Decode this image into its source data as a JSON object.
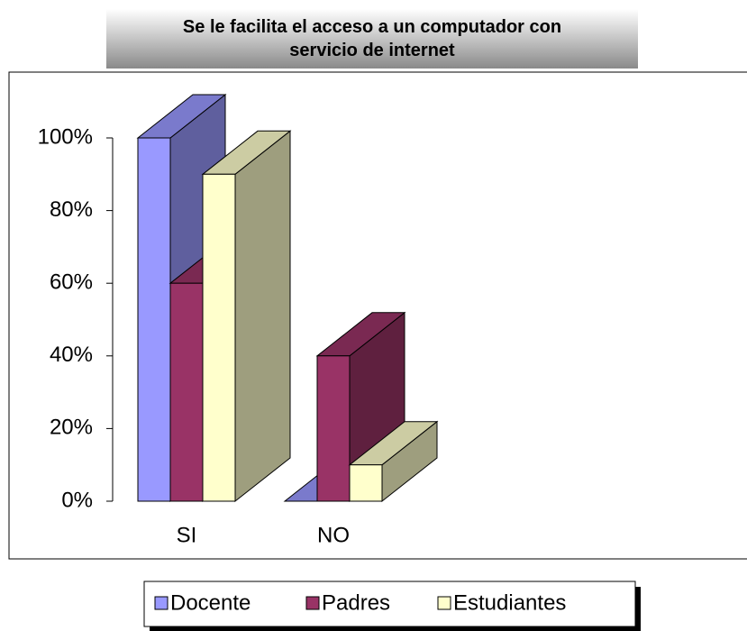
{
  "chart_data": {
    "type": "bar3d",
    "title": "Se le facilita el acceso a un computador con servicio de internet",
    "categories": [
      "SI",
      "NO"
    ],
    "series": [
      {
        "name": "Docente",
        "color": "#9999ff",
        "values": [
          100,
          0
        ]
      },
      {
        "name": "Padres",
        "color": "#993366",
        "values": [
          60,
          40
        ]
      },
      {
        "name": "Estudiantes",
        "color": "#ffffcc",
        "values": [
          90,
          10
        ]
      }
    ],
    "ylim": [
      0,
      100
    ],
    "yticks": [
      {
        "value": 0,
        "label": "0%"
      },
      {
        "value": 20,
        "label": "20%"
      },
      {
        "value": 40,
        "label": "40%"
      },
      {
        "value": 60,
        "label": "60%"
      },
      {
        "value": 80,
        "label": "80%"
      },
      {
        "value": 100,
        "label": "100%"
      }
    ],
    "legend": "bottom"
  }
}
